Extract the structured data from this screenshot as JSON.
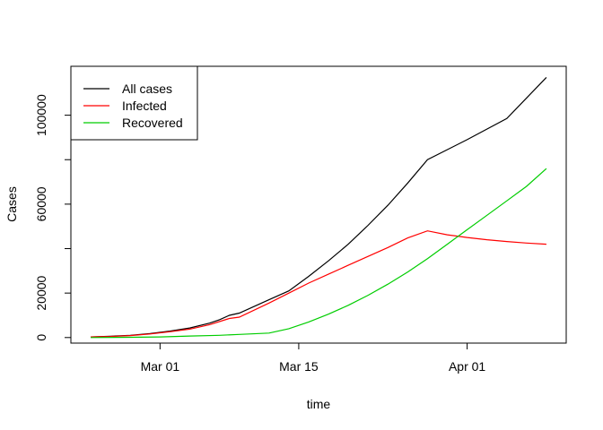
{
  "chart_data": {
    "type": "line",
    "xlabel": "time",
    "ylabel": "Cases",
    "xlim": [
      "2020-02-21",
      "2020-04-11"
    ],
    "ylim": [
      -2500,
      122000
    ],
    "x_ticks": [
      {
        "label": "Mar 01",
        "date": "2020-03-01"
      },
      {
        "label": "Mar 15",
        "date": "2020-03-15"
      },
      {
        "label": "Apr 01",
        "date": "2020-04-01"
      }
    ],
    "y_ticks": [
      {
        "label": "0",
        "value": 0
      },
      {
        "label": "20000",
        "value": 20000
      },
      {
        "label": "",
        "value": 40000
      },
      {
        "label": "60000",
        "value": 60000
      },
      {
        "label": "",
        "value": 80000
      },
      {
        "label": "100000",
        "value": 100000
      }
    ],
    "legend_position": "top-left",
    "series": [
      {
        "name": "All cases",
        "color": "#000000",
        "points": [
          [
            "2020-02-23",
            300
          ],
          [
            "2020-02-25",
            600
          ],
          [
            "2020-02-27",
            1000
          ],
          [
            "2020-02-29",
            1800
          ],
          [
            "2020-03-02",
            2900
          ],
          [
            "2020-03-04",
            4300
          ],
          [
            "2020-03-06",
            6500
          ],
          [
            "2020-03-07",
            8000
          ],
          [
            "2020-03-08",
            10000
          ],
          [
            "2020-03-09",
            11000
          ],
          [
            "2020-03-12",
            17000
          ],
          [
            "2020-03-14",
            21000
          ],
          [
            "2020-03-16",
            27500
          ],
          [
            "2020-03-18",
            34500
          ],
          [
            "2020-03-20",
            42000
          ],
          [
            "2020-03-22",
            50500
          ],
          [
            "2020-03-24",
            59500
          ],
          [
            "2020-03-26",
            69500
          ],
          [
            "2020-03-28",
            80000
          ],
          [
            "2020-04-01",
            89000
          ],
          [
            "2020-04-05",
            98500
          ],
          [
            "2020-04-09",
            117000
          ]
        ]
      },
      {
        "name": "Infected",
        "color": "#ff0000",
        "points": [
          [
            "2020-02-23",
            300
          ],
          [
            "2020-02-25",
            500
          ],
          [
            "2020-02-27",
            900
          ],
          [
            "2020-02-29",
            1600
          ],
          [
            "2020-03-02",
            2600
          ],
          [
            "2020-03-04",
            3800
          ],
          [
            "2020-03-06",
            5800
          ],
          [
            "2020-03-08",
            8600
          ],
          [
            "2020-03-09",
            9200
          ],
          [
            "2020-03-12",
            15500
          ],
          [
            "2020-03-14",
            20000
          ],
          [
            "2020-03-16",
            24500
          ],
          [
            "2020-03-18",
            28500
          ],
          [
            "2020-03-20",
            32500
          ],
          [
            "2020-03-22",
            36500
          ],
          [
            "2020-03-24",
            40500
          ],
          [
            "2020-03-26",
            44800
          ],
          [
            "2020-03-28",
            48000
          ],
          [
            "2020-03-30",
            46200
          ],
          [
            "2020-04-01",
            45000
          ],
          [
            "2020-04-03",
            44000
          ],
          [
            "2020-04-05",
            43200
          ],
          [
            "2020-04-07",
            42500
          ],
          [
            "2020-04-09",
            42000
          ]
        ]
      },
      {
        "name": "Recovered",
        "color": "#00cd00",
        "points": [
          [
            "2020-02-23",
            0
          ],
          [
            "2020-02-27",
            100
          ],
          [
            "2020-03-01",
            300
          ],
          [
            "2020-03-04",
            700
          ],
          [
            "2020-03-07",
            1000
          ],
          [
            "2020-03-09",
            1400
          ],
          [
            "2020-03-12",
            2000
          ],
          [
            "2020-03-14",
            4000
          ],
          [
            "2020-03-16",
            7000
          ],
          [
            "2020-03-18",
            10500
          ],
          [
            "2020-03-20",
            14500
          ],
          [
            "2020-03-22",
            19000
          ],
          [
            "2020-03-24",
            24000
          ],
          [
            "2020-03-26",
            29500
          ],
          [
            "2020-03-28",
            35500
          ],
          [
            "2020-03-30",
            42000
          ],
          [
            "2020-04-01",
            48500
          ],
          [
            "2020-04-03",
            55000
          ],
          [
            "2020-04-05",
            61500
          ],
          [
            "2020-04-07",
            68000
          ],
          [
            "2020-04-09",
            76000
          ]
        ]
      }
    ]
  }
}
